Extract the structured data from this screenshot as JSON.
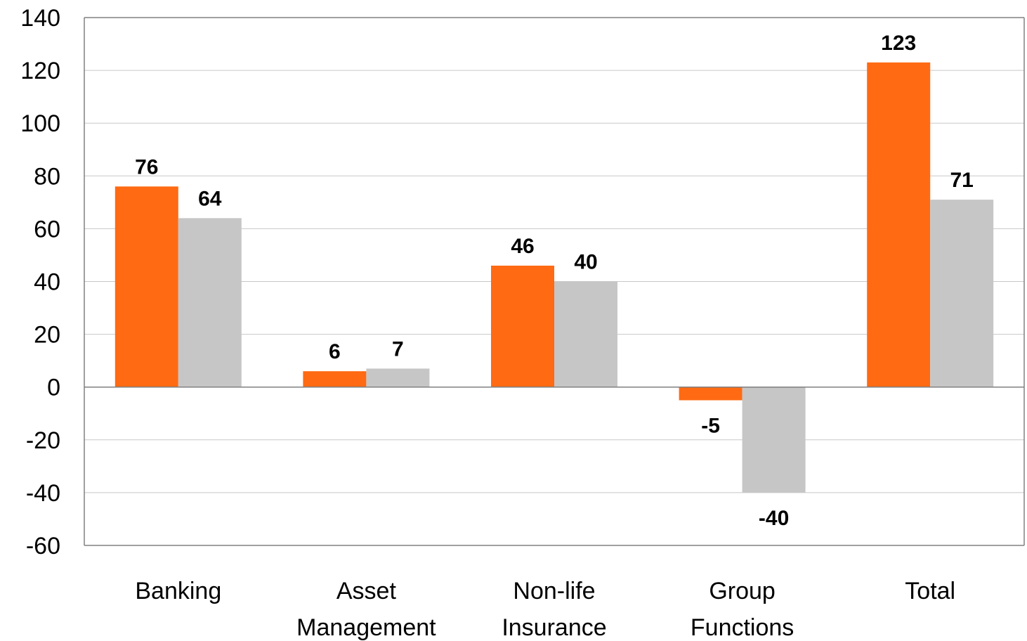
{
  "chart_data": {
    "type": "bar",
    "categories": [
      [
        "Banking"
      ],
      [
        "Asset",
        "Management"
      ],
      [
        "Non-life",
        "Insurance"
      ],
      [
        "Group",
        "Functions"
      ],
      [
        "Total"
      ]
    ],
    "series": [
      {
        "values": [
          76,
          6,
          46,
          -5,
          123
        ],
        "color": "#ff6a13"
      },
      {
        "values": [
          64,
          7,
          40,
          -40,
          71
        ],
        "color": "#c6c6c6"
      }
    ],
    "ylim": [
      -60,
      140
    ],
    "yticks": [
      -60,
      -40,
      -20,
      0,
      20,
      40,
      60,
      80,
      100,
      120,
      140
    ],
    "grid": true,
    "legend": "none"
  }
}
